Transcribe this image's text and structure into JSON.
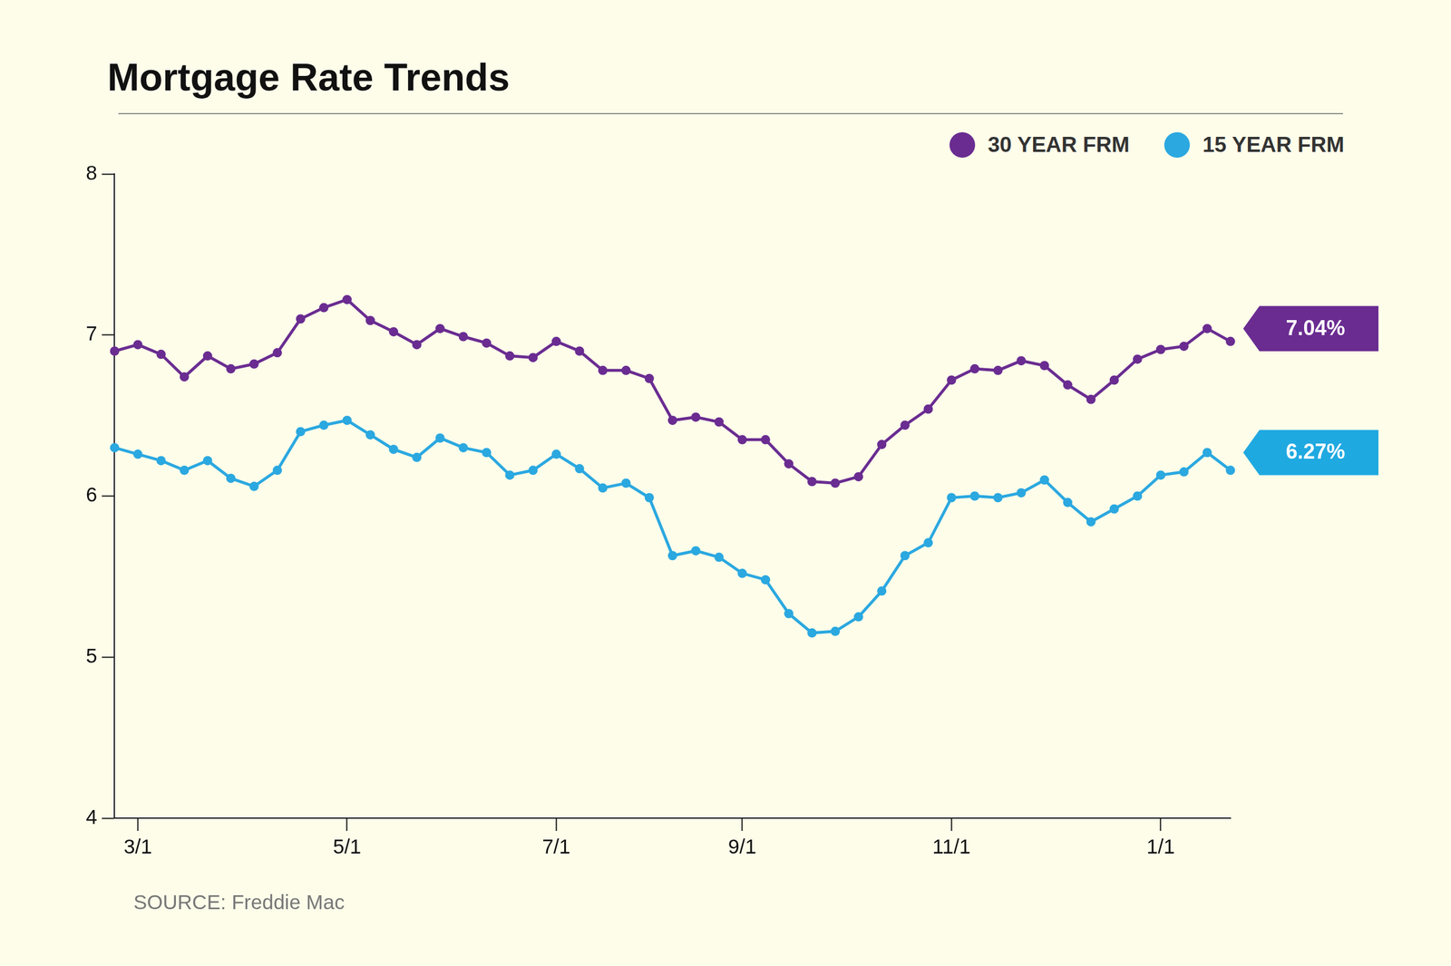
{
  "chart_data": {
    "type": "line",
    "title": "Mortgage Rate Trends",
    "source": "SOURCE: Freddie Mac",
    "categories": [
      null,
      "3/1",
      null,
      null,
      null,
      null,
      null,
      null,
      null,
      null,
      "5/1",
      null,
      null,
      null,
      null,
      null,
      null,
      null,
      null,
      "7/1",
      null,
      null,
      null,
      null,
      null,
      null,
      null,
      "9/1",
      null,
      null,
      null,
      null,
      null,
      null,
      null,
      null,
      "11/1",
      null,
      null,
      null,
      null,
      null,
      null,
      null,
      null,
      "1/1",
      null,
      null,
      null
    ],
    "series": [
      {
        "name": "30 YEAR FRM",
        "color": "#6a2c91",
        "marker": "circle",
        "line_style": "solid",
        "values": [
          6.9,
          6.94,
          6.88,
          6.74,
          6.87,
          6.79,
          6.82,
          6.89,
          7.1,
          7.17,
          7.22,
          7.09,
          7.02,
          6.94,
          7.04,
          6.99,
          6.95,
          6.87,
          6.86,
          6.96,
          6.9,
          6.78,
          6.78,
          6.73,
          6.47,
          6.49,
          6.46,
          6.35,
          6.35,
          6.2,
          6.09,
          6.08,
          6.12,
          6.32,
          6.44,
          6.54,
          6.72,
          6.79,
          6.78,
          6.84,
          6.81,
          6.69,
          6.6,
          6.72,
          6.85,
          6.91,
          6.93,
          7.04,
          6.96
        ]
      },
      {
        "name": "15 YEAR FRM",
        "color": "#2ba8e0",
        "marker": "circle",
        "line_style": "solid",
        "values": [
          6.3,
          6.26,
          6.22,
          6.16,
          6.22,
          6.11,
          6.06,
          6.16,
          6.4,
          6.44,
          6.47,
          6.38,
          6.29,
          6.24,
          6.36,
          6.3,
          6.27,
          6.13,
          6.16,
          6.26,
          6.17,
          6.05,
          6.08,
          5.99,
          5.63,
          5.66,
          5.62,
          5.52,
          5.48,
          5.27,
          5.15,
          5.16,
          5.25,
          5.41,
          5.63,
          5.71,
          5.99,
          6.0,
          5.99,
          6.02,
          6.1,
          5.96,
          5.84,
          5.92,
          6.0,
          6.13,
          6.15,
          6.27,
          6.16
        ]
      }
    ],
    "annotations": [
      {
        "value": 7.04,
        "label": "7.04%",
        "color": "#6a2c91"
      },
      {
        "value": 6.27,
        "label": "6.27%",
        "color": "#1fa9e1"
      }
    ],
    "ylim": [
      4,
      8
    ],
    "yticks": [
      4,
      5,
      6,
      7,
      8
    ],
    "grid": false,
    "legend": "top-right"
  }
}
